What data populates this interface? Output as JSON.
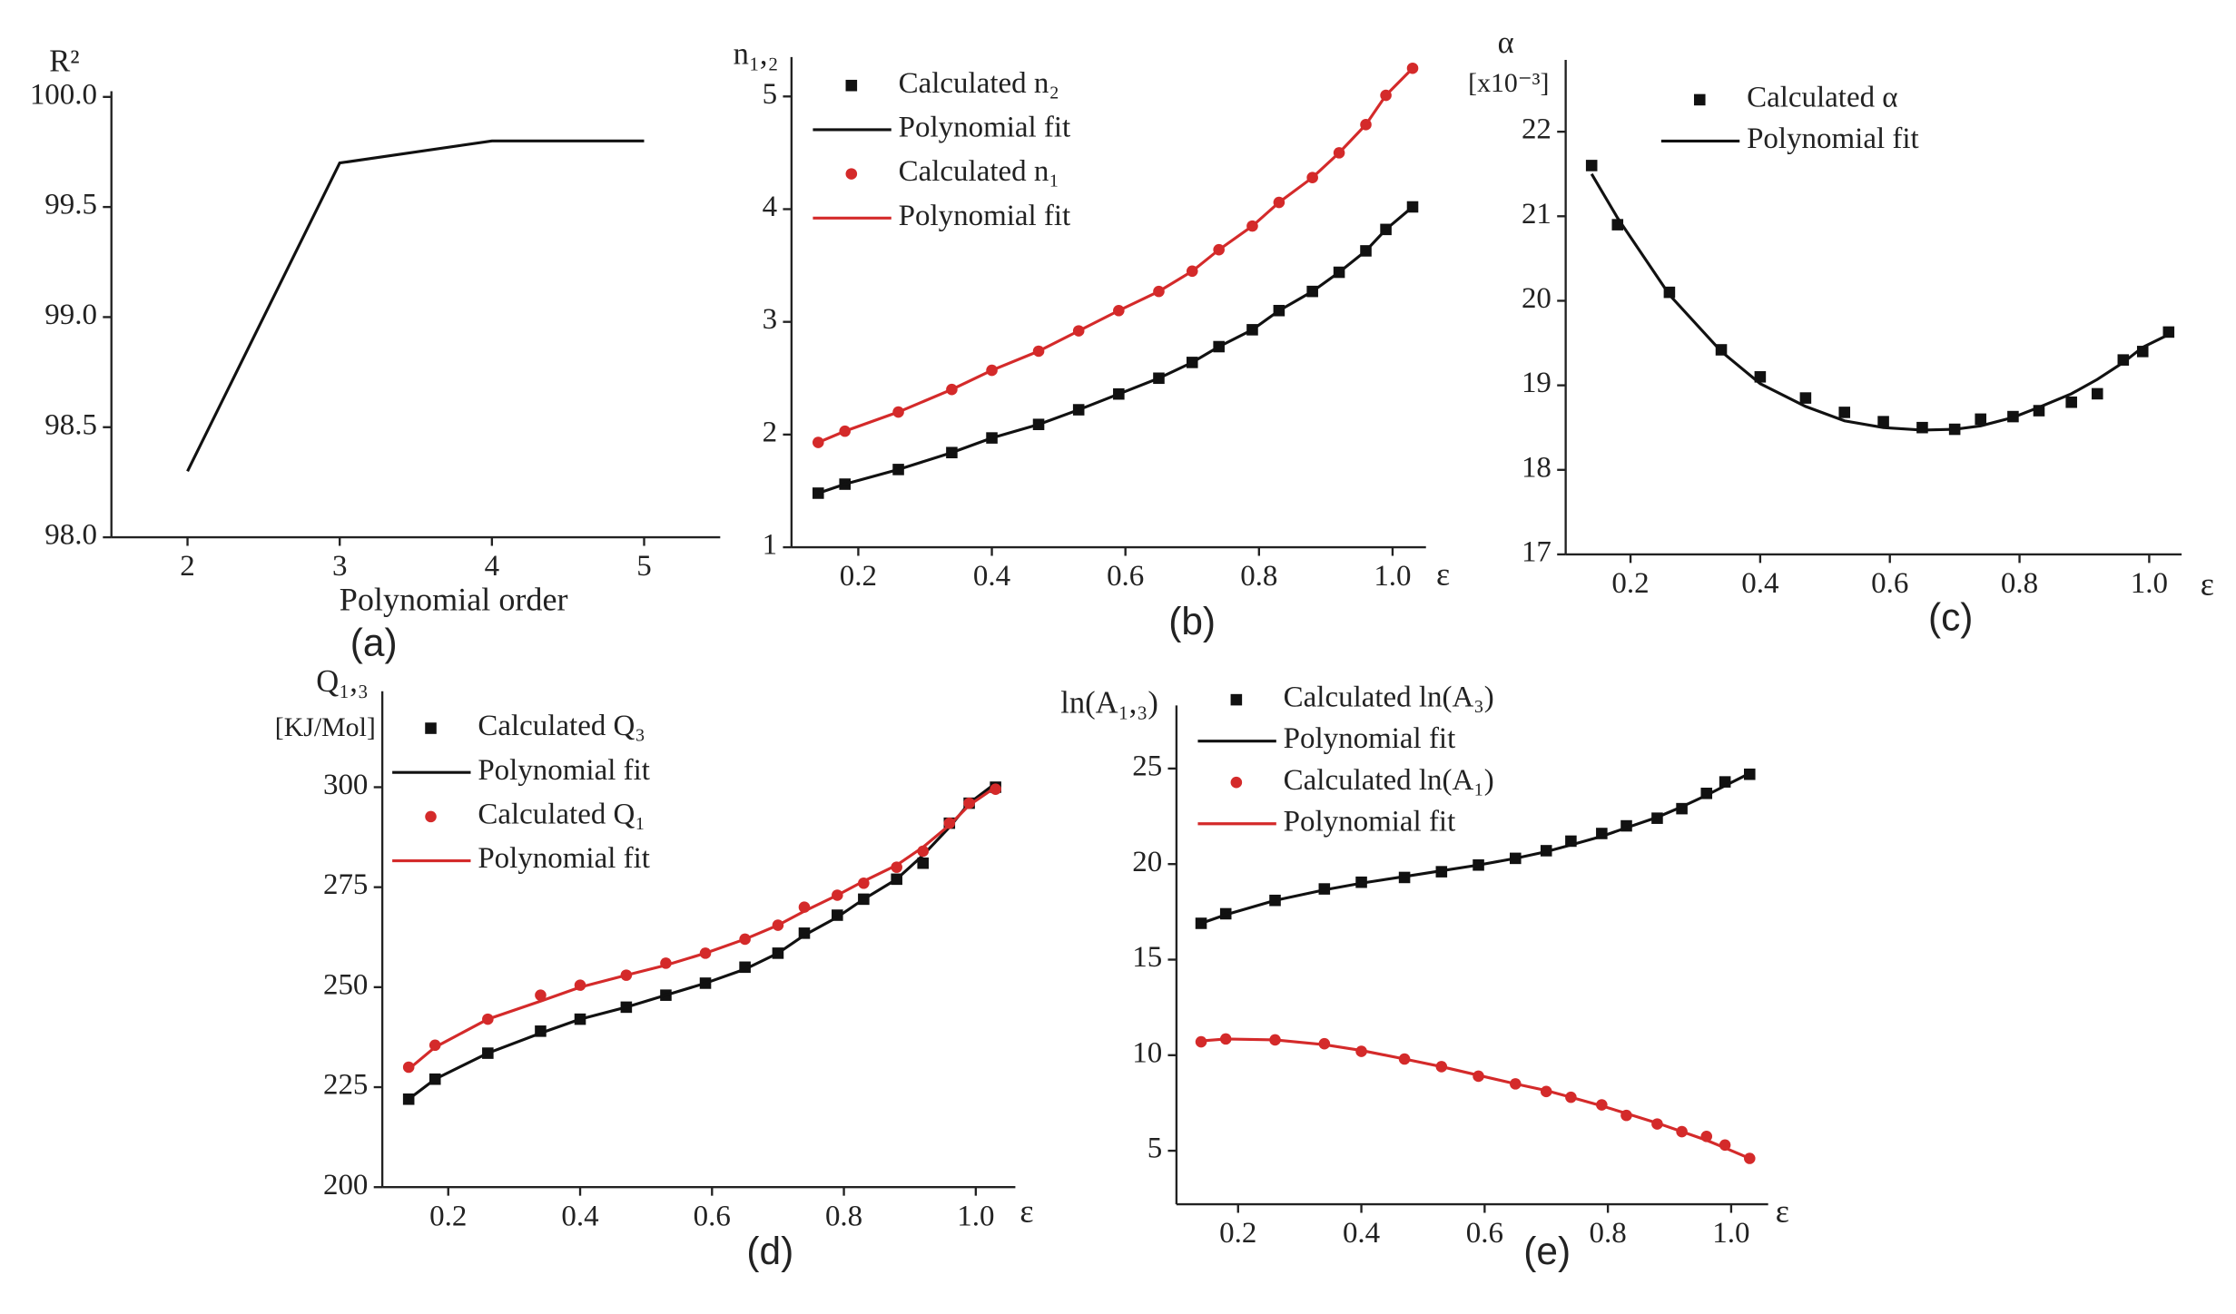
{
  "chart_data": [
    {
      "type": "line",
      "caption": "(a)",
      "ylabel": "R²",
      "xlabel": "Polynomial order",
      "x": [
        2,
        3,
        4,
        5
      ],
      "xlim": [
        1.5,
        5.5
      ],
      "xticks": [
        2,
        3,
        4,
        5
      ],
      "ylim": [
        98.0,
        100.0
      ],
      "yticks": [
        {
          "value": 98.0,
          "label": "98.0"
        },
        {
          "value": 98.5,
          "label": "98.5"
        },
        {
          "value": 99.0,
          "label": "99.0"
        },
        {
          "value": 99.5,
          "label": "99.5"
        },
        {
          "value": 100.0,
          "label": "100.0"
        }
      ],
      "series": [
        {
          "mode": "line",
          "color": "#111111",
          "values": [
            98.3,
            99.7,
            99.8,
            99.8
          ]
        }
      ]
    },
    {
      "type": "scatter",
      "caption": "(b)",
      "ylabel": "n₁,₂",
      "xlabel": "ε",
      "x": [
        0.14,
        0.18,
        0.26,
        0.34,
        0.4,
        0.47,
        0.53,
        0.59,
        0.65,
        0.7,
        0.74,
        0.79,
        0.83,
        0.88,
        0.92,
        0.96,
        0.99,
        1.03
      ],
      "xlim": [
        0.1,
        1.05
      ],
      "xticks": [
        0.2,
        0.4,
        0.6,
        0.8,
        {
          "value": 1.0,
          "label": "1.0"
        }
      ],
      "ylim": [
        1,
        5.35
      ],
      "yticks": [
        1,
        2,
        3,
        4,
        5
      ],
      "series": [
        {
          "name": "Calculated n₂",
          "mode": "markers",
          "marker": "square",
          "color": "#111111",
          "values": [
            1.48,
            1.56,
            1.69,
            1.84,
            1.97,
            2.09,
            2.22,
            2.36,
            2.5,
            2.64,
            2.78,
            2.93,
            3.1,
            3.27,
            3.44,
            3.63,
            3.82,
            4.02
          ]
        },
        {
          "name": "Polynomial fit",
          "mode": "line",
          "color": "#111111",
          "values": [
            1.48,
            1.56,
            1.69,
            1.84,
            1.97,
            2.09,
            2.22,
            2.36,
            2.5,
            2.64,
            2.78,
            2.93,
            3.1,
            3.27,
            3.44,
            3.63,
            3.82,
            4.02
          ]
        },
        {
          "name": "Calculated n₁",
          "mode": "markers",
          "marker": "circle",
          "color": "#d42a2a",
          "values": [
            1.93,
            2.03,
            2.2,
            2.4,
            2.57,
            2.74,
            2.92,
            3.1,
            3.27,
            3.45,
            3.64,
            3.85,
            4.06,
            4.28,
            4.5,
            4.75,
            5.01,
            5.25
          ]
        },
        {
          "name": "Polynomial fit",
          "mode": "line",
          "color": "#d42a2a",
          "values": [
            1.93,
            2.03,
            2.2,
            2.4,
            2.57,
            2.74,
            2.92,
            3.1,
            3.27,
            3.45,
            3.64,
            3.85,
            4.06,
            4.28,
            4.5,
            4.75,
            5.01,
            5.25
          ]
        }
      ]
    },
    {
      "type": "scatter",
      "caption": "(c)",
      "ylabel": "α",
      "yunit": "[x10⁻³]",
      "xlabel": "ε",
      "x": [
        0.14,
        0.18,
        0.26,
        0.34,
        0.4,
        0.47,
        0.53,
        0.59,
        0.65,
        0.7,
        0.74,
        0.79,
        0.83,
        0.88,
        0.92,
        0.96,
        0.99,
        1.03
      ],
      "xlim": [
        0.1,
        1.05
      ],
      "xticks": [
        0.2,
        0.4,
        0.6,
        0.8,
        {
          "value": 1.0,
          "label": "1.0"
        }
      ],
      "ylim": [
        17,
        22.85
      ],
      "yticks": [
        17,
        18,
        19,
        20,
        21,
        22
      ],
      "series": [
        {
          "name": "Calculated α",
          "mode": "markers",
          "marker": "square",
          "color": "#111111",
          "values": [
            21.6,
            20.9,
            20.1,
            19.42,
            19.1,
            18.85,
            18.68,
            18.57,
            18.5,
            18.48,
            18.6,
            18.63,
            18.7,
            18.8,
            18.9,
            19.3,
            19.4,
            19.63
          ]
        },
        {
          "name": "Polynomial fit",
          "mode": "line",
          "color": "#111111",
          "values": [
            21.5,
            20.98,
            20.07,
            19.4,
            19.02,
            18.75,
            18.58,
            18.5,
            18.47,
            18.48,
            18.52,
            18.62,
            18.74,
            18.9,
            19.07,
            19.27,
            19.45,
            19.6
          ]
        }
      ]
    },
    {
      "type": "scatter",
      "caption": "(d)",
      "ylabel": "Q₁,₃",
      "yunit": "[KJ/Mol]",
      "xlabel": "ε",
      "x": [
        0.14,
        0.18,
        0.26,
        0.34,
        0.4,
        0.47,
        0.53,
        0.59,
        0.65,
        0.7,
        0.74,
        0.79,
        0.83,
        0.88,
        0.92,
        0.96,
        0.99,
        1.03
      ],
      "xlim": [
        0.1,
        1.06
      ],
      "xticks": [
        0.2,
        0.4,
        0.6,
        0.8,
        {
          "value": 1.0,
          "label": "1.0"
        }
      ],
      "ylim": [
        200,
        324
      ],
      "yticks": [
        200,
        225,
        250,
        275,
        300
      ],
      "series": [
        {
          "name": "Calculated Q₃",
          "mode": "markers",
          "marker": "square",
          "color": "#111111",
          "values": [
            222,
            227,
            233.5,
            239,
            242,
            245,
            248,
            251,
            255,
            258.5,
            263.5,
            268,
            272,
            277,
            281,
            291,
            296,
            300
          ]
        },
        {
          "name": "Polynomial fit",
          "mode": "line",
          "color": "#111111",
          "values": [
            222,
            227,
            233.5,
            238.5,
            242,
            245,
            248,
            251,
            254.5,
            258.5,
            263,
            267.5,
            272,
            277,
            283,
            290,
            296,
            301
          ]
        },
        {
          "name": "Calculated Q₁",
          "mode": "markers",
          "marker": "circle",
          "color": "#d42a2a",
          "values": [
            230,
            235.5,
            242,
            248,
            250.5,
            253,
            256,
            258.5,
            262,
            265.5,
            270,
            273,
            276,
            280,
            284,
            291,
            296,
            299.5
          ]
        },
        {
          "name": "Polynomial fit",
          "mode": "line",
          "color": "#d42a2a",
          "values": [
            229.5,
            235,
            242,
            246.5,
            250,
            253,
            255.5,
            258.5,
            262,
            265.5,
            269,
            273,
            276.5,
            280.5,
            285,
            290.5,
            295.5,
            300
          ]
        }
      ]
    },
    {
      "type": "scatter",
      "caption": "(e)",
      "ylabel": "ln(A₁,₃)",
      "xlabel": "ε",
      "x": [
        0.14,
        0.18,
        0.26,
        0.34,
        0.4,
        0.47,
        0.53,
        0.59,
        0.65,
        0.7,
        0.74,
        0.79,
        0.83,
        0.88,
        0.92,
        0.96,
        0.99,
        1.03
      ],
      "xlim": [
        0.1,
        1.06
      ],
      "xticks": [
        0.2,
        0.4,
        0.6,
        0.8,
        {
          "value": 1.0,
          "label": "1.0"
        }
      ],
      "ylim": [
        2.2,
        28.3
      ],
      "yticks": [
        5,
        10,
        15,
        20,
        25
      ],
      "series": [
        {
          "name": "Calculated ln(A₃)",
          "mode": "markers",
          "marker": "square",
          "color": "#111111",
          "values": [
            16.9,
            17.4,
            18.1,
            18.7,
            19.05,
            19.3,
            19.6,
            19.95,
            20.3,
            20.7,
            21.2,
            21.6,
            22,
            22.4,
            22.9,
            23.7,
            24.3,
            24.7
          ]
        },
        {
          "name": "Polynomial fit",
          "mode": "line",
          "color": "#111111",
          "values": [
            16.9,
            17.35,
            18.1,
            18.65,
            19.0,
            19.35,
            19.65,
            19.95,
            20.3,
            20.65,
            21.0,
            21.45,
            21.9,
            22.45,
            23.0,
            23.6,
            24.1,
            24.75
          ]
        },
        {
          "name": "Calculated ln(A₁)",
          "mode": "markers",
          "marker": "circle",
          "color": "#d42a2a",
          "values": [
            10.7,
            10.85,
            10.8,
            10.6,
            10.2,
            9.8,
            9.4,
            8.9,
            8.5,
            8.1,
            7.8,
            7.4,
            6.85,
            6.4,
            6.0,
            5.75,
            5.3,
            4.6
          ]
        },
        {
          "name": "Polynomial fit",
          "mode": "line",
          "color": "#d42a2a",
          "values": [
            10.75,
            10.85,
            10.8,
            10.55,
            10.25,
            9.8,
            9.4,
            8.95,
            8.5,
            8.15,
            7.8,
            7.35,
            6.95,
            6.45,
            6.0,
            5.55,
            5.15,
            4.6
          ]
        }
      ]
    }
  ]
}
